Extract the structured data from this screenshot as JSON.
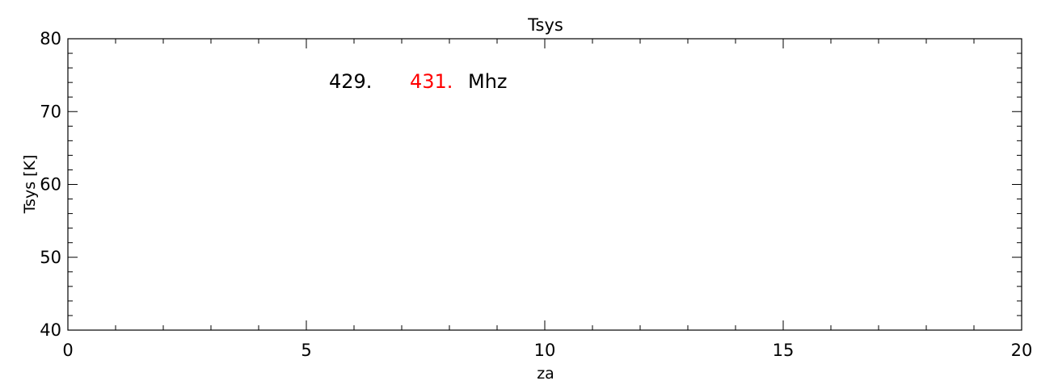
{
  "chart_data": {
    "type": "line",
    "title": "Tsys",
    "xlabel": "za",
    "ylabel": "Tsys [K]",
    "xlim": [
      0,
      20
    ],
    "ylim": [
      40,
      80
    ],
    "x_ticks": [
      0,
      5,
      10,
      15,
      20
    ],
    "y_ticks": [
      40,
      50,
      60,
      70,
      80
    ],
    "x_minor_step": 1,
    "y_minor_step": 2,
    "grid": false,
    "series": [
      {
        "name": "429.",
        "color": "#000000",
        "x": [],
        "y": []
      },
      {
        "name": "431.",
        "color": "#ff0000",
        "x": [],
        "y": []
      }
    ],
    "legend_unit": "Mhz",
    "legend_position": "top-left"
  }
}
